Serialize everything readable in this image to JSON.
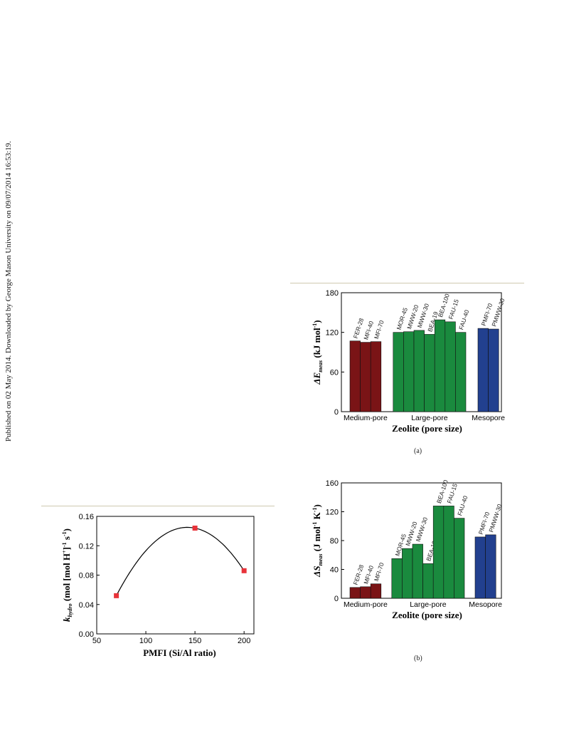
{
  "side_note": "Published on 02 May 2014. Downloaded by George Mason University on 09/07/2014 16:53:19.",
  "colors": {
    "medium": "#7a1416",
    "large": "#1a8a3e",
    "meso": "#22408f",
    "marker": "#e8333a"
  },
  "chart_data": [
    {
      "id": "a",
      "type": "bar",
      "caption": "(a)",
      "xlabel": "Zeolite (pore size)",
      "ylabel_main": "ΔE",
      "ylabel_sub": "meas",
      "ylabel_unit": "(kJ mol",
      "ylabel_exp": "-1",
      "ylabel_close": ")",
      "ylim": [
        0,
        180
      ],
      "yticks": [
        0,
        60,
        120,
        180
      ],
      "groups": [
        {
          "label": "Medium-pore",
          "color": "medium",
          "bars": [
            {
              "name": "FER-28",
              "value": 107
            },
            {
              "name": "MFI-40",
              "value": 105
            },
            {
              "name": "MFI-70",
              "value": 106
            }
          ]
        },
        {
          "label": "Large-pore",
          "color": "large",
          "bars": [
            {
              "name": "MOR-45",
              "value": 120
            },
            {
              "name": "MWW-20",
              "value": 121
            },
            {
              "name": "MWW-30",
              "value": 123
            },
            {
              "name": "BEA-19",
              "value": 117
            },
            {
              "name": "BEA-100",
              "value": 139
            },
            {
              "name": "FAU-15",
              "value": 136
            },
            {
              "name": "FAU-40",
              "value": 120
            }
          ]
        },
        {
          "label": "Mesopore",
          "color": "meso",
          "bars": [
            {
              "name": "PMFI-70",
              "value": 126
            },
            {
              "name": "PMWW-30",
              "value": 125
            }
          ]
        }
      ]
    },
    {
      "id": "b",
      "type": "bar",
      "caption": "(b)",
      "xlabel": "Zeolite (pore size)",
      "ylabel_main": "ΔS",
      "ylabel_sub": "meas",
      "ylabel_unit": "(J mol",
      "ylabel_exp": "-1",
      "ylabel_unit2": " K",
      "ylabel_exp2": "-1",
      "ylabel_close": ")",
      "ylim": [
        0,
        160
      ],
      "yticks": [
        0,
        40,
        80,
        120,
        160
      ],
      "groups": [
        {
          "label": "Medium-pore",
          "color": "medium",
          "bars": [
            {
              "name": "FER-28",
              "value": 15
            },
            {
              "name": "MFI-40",
              "value": 16
            },
            {
              "name": "MFI-70",
              "value": 20
            }
          ]
        },
        {
          "label": "Large-pore",
          "color": "large",
          "bars": [
            {
              "name": "MOR-45",
              "value": 55
            },
            {
              "name": "MWW-20",
              "value": 69
            },
            {
              "name": "MWW-30",
              "value": 75
            },
            {
              "name": "BEA-19",
              "value": 48
            },
            {
              "name": "BEA-100",
              "value": 128
            },
            {
              "name": "FAU-15",
              "value": 128
            },
            {
              "name": "FAU-40",
              "value": 111
            }
          ]
        },
        {
          "label": "Mesopore",
          "color": "meso",
          "bars": [
            {
              "name": "PMFI-70",
              "value": 85
            },
            {
              "name": "PMWW-30",
              "value": 88
            }
          ]
        }
      ]
    },
    {
      "id": "c",
      "type": "scatter",
      "xlabel": "PMFI (Si/Al ratio)",
      "ylabel_main": "k",
      "ylabel_sub": "hydro",
      "ylabel_unit": "(mol [mol H",
      "ylabel_exp": "+",
      "ylabel_unit2": "]",
      "ylabel_exp2": "-1",
      "ylabel_unit3": " s",
      "ylabel_exp3": "-1",
      "ylabel_close": ")",
      "xlim": [
        50,
        210
      ],
      "ylim": [
        0,
        0.16
      ],
      "xticks": [
        50,
        100,
        150,
        200
      ],
      "yticks": [
        0.0,
        0.04,
        0.08,
        0.12,
        0.16
      ],
      "points": [
        {
          "x": 70,
          "y": 0.052
        },
        {
          "x": 150,
          "y": 0.144
        },
        {
          "x": 200,
          "y": 0.086
        }
      ],
      "fit_curve": true
    }
  ]
}
